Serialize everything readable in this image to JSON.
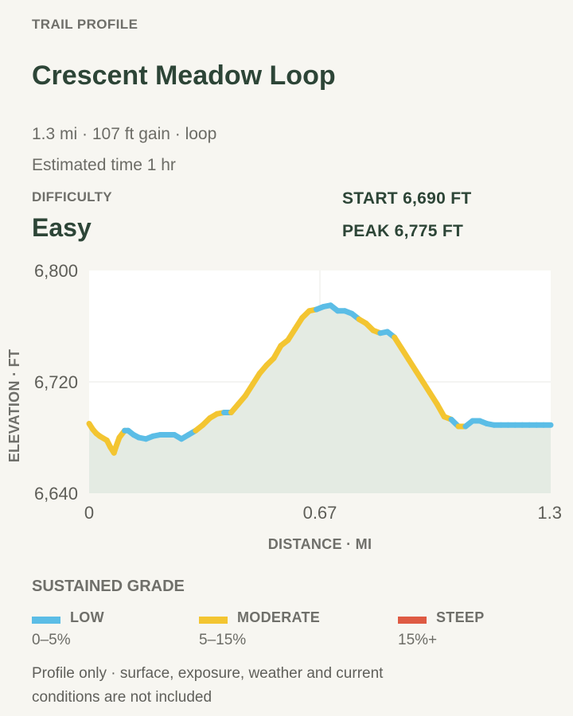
{
  "header": {
    "eyebrow": "TRAIL PROFILE",
    "title": "Crescent Meadow Loop",
    "summary": "1.3 mi · 107 ft gain · loop",
    "estimate": "Estimated time 1 hr"
  },
  "difficulty": {
    "label": "DIFFICULTY",
    "value": "Easy"
  },
  "stats": {
    "start": "START 6,690 FT",
    "peak": "PEAK 6,775 FT"
  },
  "legend": {
    "title": "SUSTAINED GRADE",
    "items": [
      {
        "name": "LOW",
        "range": "0–5%",
        "color": "#5bbde6"
      },
      {
        "name": "MODERATE",
        "range": "5–15%",
        "color": "#f3c531"
      },
      {
        "name": "STEEP",
        "range": "15%+",
        "color": "#de5a43"
      }
    ]
  },
  "footnote": "Profile only · surface, exposure, weather and current conditions are not included",
  "chart_data": {
    "type": "line",
    "xlabel": "DISTANCE · MI",
    "ylabel": "ELEVATION · FT",
    "xlim": [
      0,
      1.3
    ],
    "ylim": [
      6640,
      6800
    ],
    "x_ticks": [
      "0",
      "0.67",
      "1.3"
    ],
    "y_ticks": [
      "6,640",
      "6,720",
      "6,800"
    ],
    "grid": true,
    "area_fill_color": "#e4ebe3",
    "series": [
      {
        "x": [
          0,
          0.01,
          0.02,
          0.03,
          0.05,
          0.06,
          0.07,
          0.075,
          0.085,
          0.1,
          0.11,
          0.125,
          0.14,
          0.16,
          0.18,
          0.2,
          0.22,
          0.24,
          0.26,
          0.28,
          0.3,
          0.32,
          0.34,
          0.36,
          0.38,
          0.4,
          0.42,
          0.44,
          0.46,
          0.48,
          0.5,
          0.52,
          0.54,
          0.56,
          0.58,
          0.6,
          0.62,
          0.64,
          0.66,
          0.68,
          0.7,
          0.72,
          0.74,
          0.76,
          0.78,
          0.8,
          0.82,
          0.84,
          0.86,
          0.88,
          0.9,
          0.92,
          0.94,
          0.96,
          0.98,
          1.0,
          1.02,
          1.04,
          1.06,
          1.08,
          1.1,
          1.12,
          1.14,
          1.16,
          1.18,
          1.2,
          1.22,
          1.24,
          1.26,
          1.28,
          1.3
        ],
        "y": [
          6690,
          6686,
          6683,
          6681,
          6678,
          6673,
          6669,
          6673,
          6680,
          6685,
          6685,
          6682,
          6680,
          6679,
          6681,
          6682,
          6682,
          6682,
          6679,
          6682,
          6685,
          6689,
          6694,
          6697,
          6698,
          6698,
          6704,
          6710,
          6718,
          6726,
          6732,
          6737,
          6746,
          6750,
          6758,
          6766,
          6771,
          6772,
          6774,
          6775,
          6771,
          6771,
          6769,
          6765,
          6762,
          6757,
          6755,
          6756,
          6752,
          6744,
          6736,
          6728,
          6720,
          6712,
          6704,
          6695,
          6693,
          6688,
          6688,
          6692,
          6692,
          6690,
          6689,
          6689,
          6689,
          6689,
          6689,
          6689,
          6689,
          6689,
          6689
        ],
        "grade": [
          "moderate",
          "moderate",
          "moderate",
          "moderate",
          "moderate",
          "moderate",
          "moderate",
          "moderate",
          "moderate",
          "low",
          "low",
          "low",
          "low",
          "low",
          "low",
          "low",
          "low",
          "low",
          "low",
          "low",
          "moderate",
          "moderate",
          "moderate",
          "moderate",
          "low",
          "moderate",
          "moderate",
          "moderate",
          "moderate",
          "moderate",
          "moderate",
          "moderate",
          "moderate",
          "moderate",
          "moderate",
          "moderate",
          "moderate",
          "low",
          "low",
          "low",
          "low",
          "low",
          "low",
          "moderate",
          "moderate",
          "moderate",
          "low",
          "low",
          "moderate",
          "moderate",
          "moderate",
          "moderate",
          "moderate",
          "moderate",
          "moderate",
          "moderate",
          "low",
          "moderate",
          "low",
          "low",
          "low",
          "low",
          "low",
          "low",
          "low",
          "low",
          "low",
          "low",
          "low",
          "low",
          "low"
        ]
      }
    ]
  }
}
